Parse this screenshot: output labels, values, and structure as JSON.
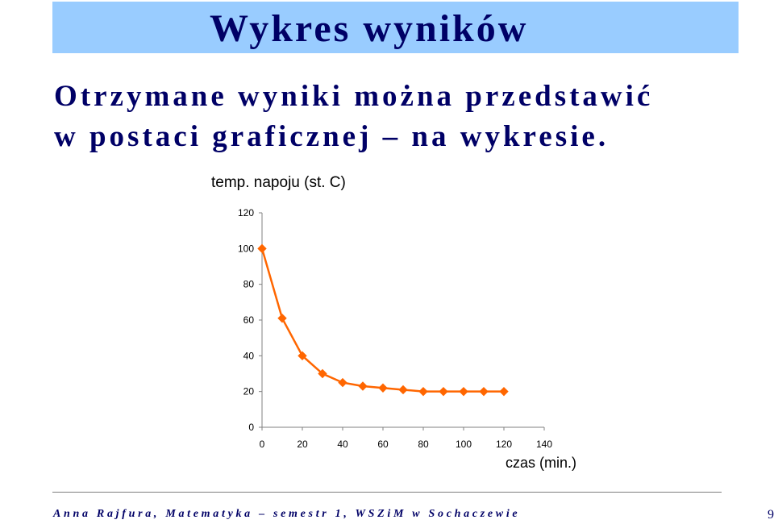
{
  "slide": {
    "title": "Wykres wyników",
    "body_line1": "Otrzymane wyniki można przedstawić",
    "body_line2": "w postaci graficznej – na wykresie.",
    "footer": "Anna Rajfura, Matematyka – semestr 1, WSZiM w Sochaczewie",
    "page_number": "9"
  },
  "chart_data": {
    "type": "line",
    "ylabel": "temp. napoju (st. C)",
    "xlabel": "czas (min.)",
    "xlim": [
      0,
      140
    ],
    "ylim": [
      0,
      120
    ],
    "x_ticks": [
      0,
      20,
      40,
      60,
      80,
      100,
      120,
      140
    ],
    "y_ticks": [
      0,
      20,
      40,
      60,
      80,
      100,
      120
    ],
    "grid": false,
    "legend": "none",
    "color": "#ff6600",
    "marker": "diamond",
    "series": [
      {
        "x": [
          0,
          10,
          20,
          30,
          40,
          50,
          60,
          70,
          80,
          90,
          100,
          110,
          120
        ],
        "y": [
          100,
          61,
          40,
          30,
          25,
          23,
          22,
          21,
          20,
          20,
          20,
          20,
          20
        ]
      }
    ]
  }
}
